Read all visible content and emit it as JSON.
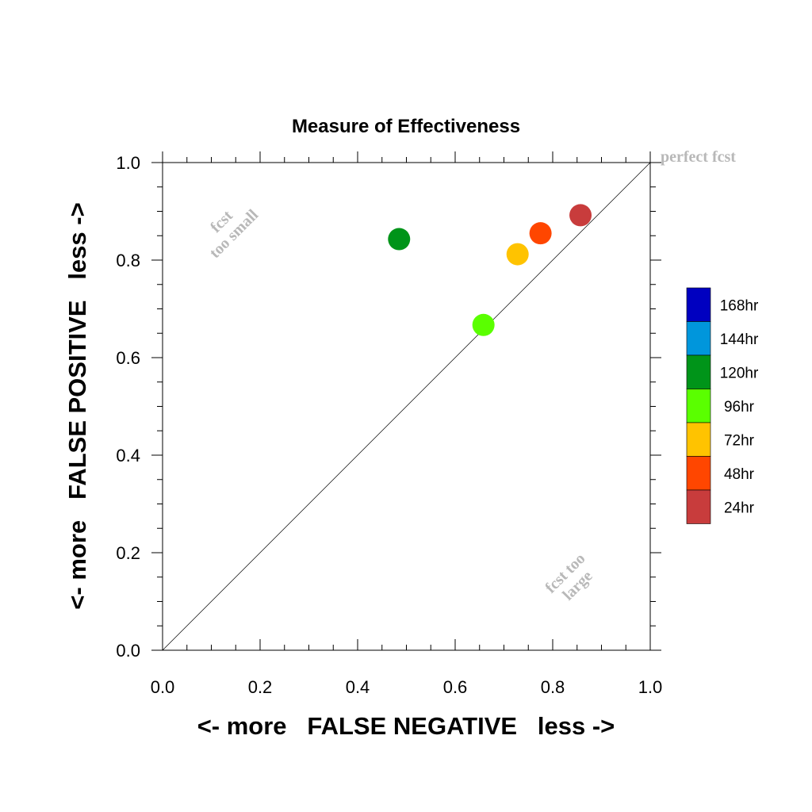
{
  "chart_data": {
    "type": "scatter",
    "title": "Measure of Effectiveness",
    "xlabel": "<- more   FALSE NEGATIVE   less ->",
    "ylabel": "<- more   FALSE POSITIVE   less ->",
    "xlim": [
      0.0,
      1.0
    ],
    "ylim": [
      0.0,
      1.0
    ],
    "xticks": [
      "0.0",
      "0.2",
      "0.4",
      "0.6",
      "0.8",
      "1.0"
    ],
    "yticks": [
      "0.0",
      "0.2",
      "0.4",
      "0.6",
      "0.8",
      "1.0"
    ],
    "grid": false,
    "diagonal_reference_line": true,
    "annotations": {
      "perfect": "perfect fcst",
      "too_small_line1": "fcst",
      "too_small_line2": "too small",
      "too_large_line1": "fcst too",
      "too_large_line2": "large"
    },
    "legend": {
      "placement": "right",
      "entries": [
        {
          "label": "168hr",
          "color": "#0000c0"
        },
        {
          "label": "144hr",
          "color": "#0096dc"
        },
        {
          "label": "120hr",
          "color": "#009419"
        },
        {
          "label": "96hr",
          "color": "#5aff00"
        },
        {
          "label": "72hr",
          "color": "#ffc300"
        },
        {
          "label": "48hr",
          "color": "#ff4600"
        },
        {
          "label": "24hr",
          "color": "#c83c3c"
        }
      ]
    },
    "points": [
      {
        "label": "120hr",
        "x": 0.485,
        "y": 0.843,
        "color": "#009419"
      },
      {
        "label": "96hr",
        "x": 0.658,
        "y": 0.667,
        "color": "#5aff00"
      },
      {
        "label": "72hr",
        "x": 0.728,
        "y": 0.812,
        "color": "#ffc300"
      },
      {
        "label": "48hr",
        "x": 0.775,
        "y": 0.855,
        "color": "#ff4600"
      },
      {
        "label": "24hr",
        "x": 0.857,
        "y": 0.892,
        "color": "#c83c3c"
      }
    ]
  }
}
